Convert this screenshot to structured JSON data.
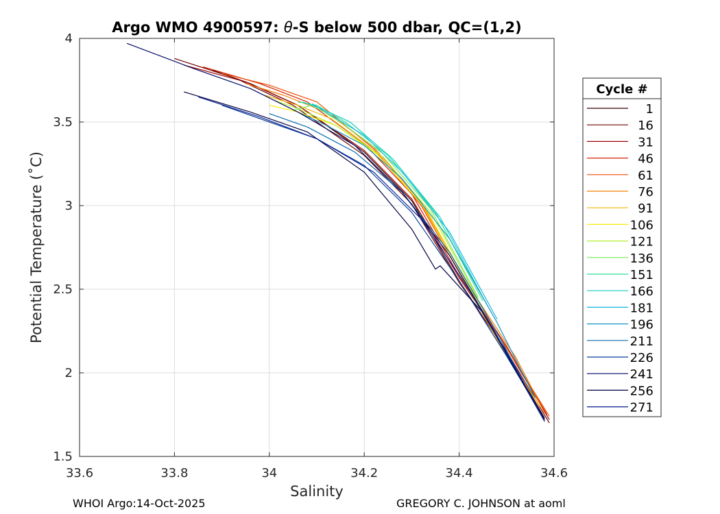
{
  "chart_data": {
    "type": "line",
    "title_prefix": "Argo WMO 4900597: ",
    "title_theta": "θ",
    "title_suffix": "-S below 500 dbar,  QC=(1,2)",
    "xlabel": "Salinity",
    "ylabel": "Potential Temperature (˚C)",
    "xlim": [
      33.6,
      34.6
    ],
    "ylim": [
      1.5,
      4
    ],
    "xticks": [
      "33.6",
      "33.8",
      "34",
      "34.2",
      "34.4",
      "34.6"
    ],
    "yticks": [
      "1.5",
      "2",
      "2.5",
      "3",
      "3.5",
      "4"
    ],
    "grid": true,
    "legend_position": "right-outside",
    "legend_title": "Cycle #",
    "legend": [
      {
        "label": "1",
        "color": "#300000"
      },
      {
        "label": "16",
        "color": "#6e0000"
      },
      {
        "label": "31",
        "color": "#a00000"
      },
      {
        "label": "46",
        "color": "#d21e00"
      },
      {
        "label": "61",
        "color": "#f04a00"
      },
      {
        "label": "76",
        "color": "#f47e00"
      },
      {
        "label": "91",
        "color": "#f4b400"
      },
      {
        "label": "106",
        "color": "#f4ec00"
      },
      {
        "label": "121",
        "color": "#b6ee30"
      },
      {
        "label": "136",
        "color": "#74ea5a"
      },
      {
        "label": "151",
        "color": "#2ede8c"
      },
      {
        "label": "166",
        "color": "#12cfbf"
      },
      {
        "label": "181",
        "color": "#10b6e6"
      },
      {
        "label": "196",
        "color": "#1294c2"
      },
      {
        "label": "211",
        "color": "#0a6aae"
      },
      {
        "label": "226",
        "color": "#063e98"
      },
      {
        "label": "241",
        "color": "#000a64"
      },
      {
        "label": "256",
        "color": "#000040"
      },
      {
        "label": "271",
        "color": "#0a1e96"
      }
    ],
    "series": [
      {
        "name": "1",
        "color": "#300000",
        "points": [
          [
            33.88,
            3.81
          ],
          [
            33.96,
            3.73
          ],
          [
            34.06,
            3.6
          ],
          [
            34.2,
            3.32
          ],
          [
            34.3,
            3.03
          ],
          [
            34.4,
            2.55
          ],
          [
            34.5,
            2.12
          ],
          [
            34.58,
            1.73
          ]
        ]
      },
      {
        "name": "16",
        "color": "#6e0000",
        "points": [
          [
            33.8,
            3.88
          ],
          [
            33.93,
            3.76
          ],
          [
            34.05,
            3.6
          ],
          [
            34.2,
            3.3
          ],
          [
            34.3,
            3.01
          ],
          [
            34.4,
            2.54
          ],
          [
            34.5,
            2.13
          ],
          [
            34.59,
            1.7
          ]
        ]
      },
      {
        "name": "31",
        "color": "#a00000",
        "points": [
          [
            33.82,
            3.84
          ],
          [
            33.95,
            3.74
          ],
          [
            34.06,
            3.6
          ],
          [
            34.2,
            3.33
          ],
          [
            34.3,
            3.04
          ],
          [
            34.4,
            2.57
          ],
          [
            34.5,
            2.15
          ],
          [
            34.59,
            1.72
          ]
        ]
      },
      {
        "name": "46",
        "color": "#d21e00",
        "points": [
          [
            33.86,
            3.83
          ],
          [
            33.98,
            3.73
          ],
          [
            34.08,
            3.62
          ],
          [
            34.2,
            3.37
          ],
          [
            34.3,
            3.07
          ],
          [
            34.4,
            2.58
          ],
          [
            34.5,
            2.16
          ],
          [
            34.585,
            1.75
          ]
        ]
      },
      {
        "name": "61",
        "color": "#f04a00",
        "points": [
          [
            33.9,
            3.79
          ],
          [
            34.0,
            3.72
          ],
          [
            34.1,
            3.62
          ],
          [
            34.22,
            3.34
          ],
          [
            34.32,
            3.0
          ],
          [
            34.42,
            2.5
          ],
          [
            34.52,
            2.06
          ],
          [
            34.59,
            1.74
          ]
        ]
      },
      {
        "name": "76",
        "color": "#f47e00",
        "points": [
          [
            33.95,
            3.73
          ],
          [
            34.03,
            3.66
          ],
          [
            34.12,
            3.56
          ],
          [
            34.22,
            3.35
          ],
          [
            34.32,
            3.02
          ],
          [
            34.42,
            2.52
          ],
          [
            34.52,
            2.09
          ],
          [
            34.58,
            1.76
          ]
        ]
      },
      {
        "name": "91",
        "color": "#f4b400",
        "points": [
          [
            33.99,
            3.66
          ],
          [
            34.06,
            3.6
          ],
          [
            34.13,
            3.52
          ],
          [
            34.22,
            3.33
          ],
          [
            34.32,
            3.01
          ],
          [
            34.42,
            2.5
          ],
          [
            34.5,
            2.1
          ],
          [
            34.57,
            1.8
          ]
        ]
      },
      {
        "name": "106",
        "color": "#f4ec00",
        "points": [
          [
            34.0,
            3.6
          ],
          [
            34.06,
            3.56
          ],
          [
            34.14,
            3.48
          ],
          [
            34.23,
            3.3
          ],
          [
            34.33,
            2.98
          ],
          [
            34.43,
            2.47
          ],
          [
            34.5,
            2.11
          ]
        ]
      },
      {
        "name": "121",
        "color": "#b6ee30",
        "points": [
          [
            34.01,
            3.63
          ],
          [
            34.06,
            3.58
          ],
          [
            34.14,
            3.48
          ],
          [
            34.24,
            3.29
          ],
          [
            34.34,
            2.96
          ],
          [
            34.44,
            2.44
          ]
        ]
      },
      {
        "name": "136",
        "color": "#74ea5a",
        "points": [
          [
            34.05,
            3.57
          ],
          [
            34.09,
            3.6
          ],
          [
            34.15,
            3.5
          ],
          [
            34.24,
            3.31
          ],
          [
            34.34,
            2.98
          ],
          [
            34.44,
            2.45
          ]
        ]
      },
      {
        "name": "151",
        "color": "#2ede8c",
        "points": [
          [
            34.06,
            3.62
          ],
          [
            34.1,
            3.6
          ],
          [
            34.16,
            3.5
          ],
          [
            34.25,
            3.3
          ],
          [
            34.35,
            2.96
          ],
          [
            34.45,
            2.43
          ]
        ]
      },
      {
        "name": "166",
        "color": "#12cfbf",
        "points": [
          [
            34.07,
            3.62
          ],
          [
            34.11,
            3.58
          ],
          [
            34.17,
            3.5
          ],
          [
            34.26,
            3.28
          ],
          [
            34.36,
            2.93
          ],
          [
            34.46,
            2.4
          ]
        ]
      },
      {
        "name": "181",
        "color": "#10b6e6",
        "points": [
          [
            34.09,
            3.61
          ],
          [
            34.13,
            3.54
          ],
          [
            34.2,
            3.42
          ],
          [
            34.28,
            3.2
          ],
          [
            34.38,
            2.84
          ],
          [
            34.48,
            2.32
          ]
        ]
      },
      {
        "name": "196",
        "color": "#1294c2",
        "points": [
          [
            34.06,
            3.56
          ],
          [
            34.12,
            3.48
          ],
          [
            34.2,
            3.36
          ],
          [
            34.28,
            3.16
          ],
          [
            34.38,
            2.8
          ],
          [
            34.48,
            2.3
          ],
          [
            34.56,
            1.85
          ]
        ]
      },
      {
        "name": "211",
        "color": "#0a6aae",
        "points": [
          [
            34.0,
            3.55
          ],
          [
            34.08,
            3.47
          ],
          [
            34.18,
            3.32
          ],
          [
            34.28,
            3.08
          ],
          [
            34.38,
            2.72
          ],
          [
            34.48,
            2.24
          ],
          [
            34.57,
            1.76
          ]
        ]
      },
      {
        "name": "226",
        "color": "#063e98",
        "points": [
          [
            33.9,
            3.6
          ],
          [
            34.0,
            3.5
          ],
          [
            34.1,
            3.4
          ],
          [
            34.2,
            3.24
          ],
          [
            34.3,
            2.96
          ],
          [
            34.4,
            2.55
          ],
          [
            34.5,
            2.1
          ],
          [
            34.58,
            1.72
          ]
        ]
      },
      {
        "name": "241",
        "color": "#000a64",
        "points": [
          [
            33.7,
            3.97
          ],
          [
            33.84,
            3.82
          ],
          [
            33.96,
            3.7
          ],
          [
            34.06,
            3.56
          ],
          [
            34.18,
            3.36
          ],
          [
            34.28,
            3.08
          ],
          [
            34.38,
            2.7
          ],
          [
            34.48,
            2.22
          ],
          [
            34.58,
            1.72
          ]
        ]
      },
      {
        "name": "256",
        "color": "#000040",
        "points": [
          [
            33.82,
            3.68
          ],
          [
            33.96,
            3.56
          ],
          [
            34.08,
            3.44
          ],
          [
            34.2,
            3.2
          ],
          [
            34.3,
            2.86
          ],
          [
            34.35,
            2.62
          ],
          [
            34.36,
            2.64
          ],
          [
            34.45,
            2.36
          ],
          [
            34.55,
            1.86
          ],
          [
            34.58,
            1.71
          ]
        ]
      },
      {
        "name": "271",
        "color": "#0a1e96",
        "points": [
          [
            33.85,
            3.65
          ],
          [
            33.98,
            3.53
          ],
          [
            34.1,
            3.4
          ],
          [
            34.22,
            3.2
          ],
          [
            34.32,
            2.92
          ],
          [
            34.42,
            2.5
          ],
          [
            34.52,
            2.02
          ],
          [
            34.58,
            1.71
          ]
        ]
      }
    ]
  },
  "footer": {
    "left": "WHOI Argo:14-Oct-2025",
    "right": "GREGORY C. JOHNSON at aoml"
  }
}
